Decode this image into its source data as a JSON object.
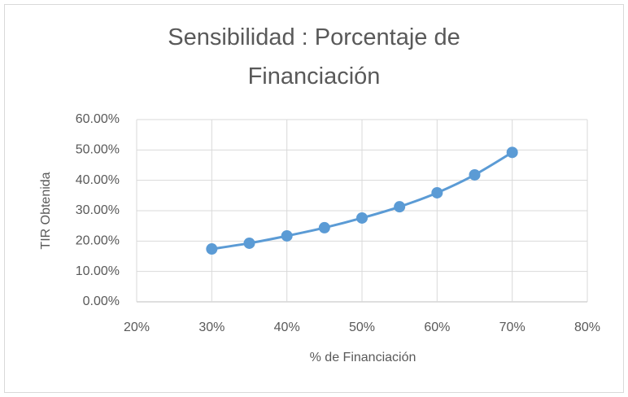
{
  "chart_data": {
    "type": "scatter",
    "title": "Sensibilidad : Porcentaje de Financiación",
    "x_label": "% de Financiación",
    "y_label": "TIR Obtenida",
    "series": [
      {
        "name": "TIR Obtenida",
        "color": "#5b9bd5",
        "x": [
          30,
          35,
          40,
          45,
          50,
          55,
          60,
          65,
          70
        ],
        "values": [
          17.4,
          19.3,
          21.7,
          24.4,
          27.6,
          31.3,
          35.9,
          41.8,
          49.2
        ]
      }
    ],
    "smooth": true,
    "xlim": [
      20,
      80
    ],
    "xticks": [
      {
        "value": 20,
        "label": "20%"
      },
      {
        "value": 30,
        "label": "30%"
      },
      {
        "value": 40,
        "label": "40%"
      },
      {
        "value": 50,
        "label": "50%"
      },
      {
        "value": 60,
        "label": "60%"
      },
      {
        "value": 70,
        "label": "70%"
      },
      {
        "value": 80,
        "label": "80%"
      }
    ],
    "ylim": [
      0,
      60
    ],
    "yticks": [
      {
        "value": 0,
        "label": "0.00%"
      },
      {
        "value": 10,
        "label": "10.00%"
      },
      {
        "value": 20,
        "label": "20.00%"
      },
      {
        "value": 30,
        "label": "30.00%"
      },
      {
        "value": 40,
        "label": "40.00%"
      },
      {
        "value": 50,
        "label": "50.00%"
      },
      {
        "value": 60,
        "label": "60.00%"
      }
    ],
    "grid": true
  }
}
